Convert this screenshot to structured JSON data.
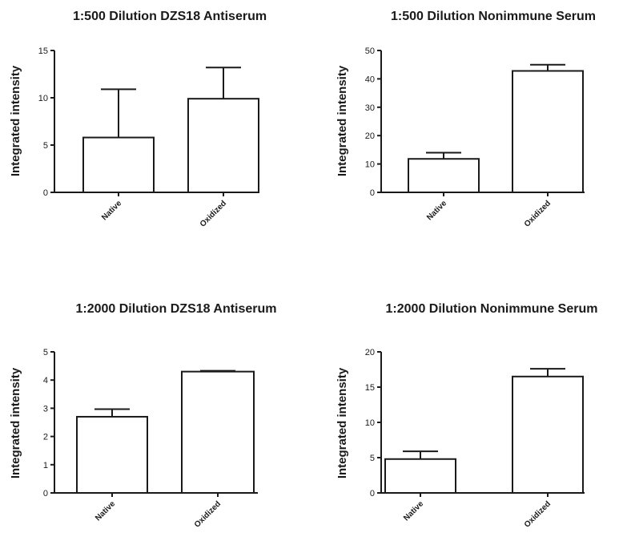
{
  "colors": {
    "bar_fill": "#ffffff",
    "stroke": "#1a1a1a"
  },
  "chart_data": [
    {
      "type": "bar",
      "title": "1:500 Dilution DZS18 Antiserum",
      "ylabel": "Integrated intensity",
      "xlabel": "",
      "categories": [
        "Native",
        "Oxidized"
      ],
      "values": [
        5.8,
        9.9
      ],
      "errors_upper": [
        10.9,
        13.2
      ],
      "ylim": [
        0,
        15
      ],
      "yticks": [
        0,
        5,
        10,
        15
      ]
    },
    {
      "type": "bar",
      "title": "1:500 Dilution Nonimmune Serum",
      "ylabel": "Integrated intensity",
      "xlabel": "",
      "categories": [
        "Native",
        "Oxidized"
      ],
      "values": [
        11.8,
        42.8
      ],
      "errors_upper": [
        14.0,
        45.0
      ],
      "ylim": [
        0,
        50
      ],
      "yticks": [
        0,
        10,
        20,
        30,
        40,
        50
      ]
    },
    {
      "type": "bar",
      "title": "1:2000 Dilution DZS18 Antiserum",
      "ylabel": "Integrated intensity",
      "xlabel": "",
      "categories": [
        "Native",
        "Oxidized"
      ],
      "values": [
        2.7,
        4.3
      ],
      "errors_upper": [
        2.97,
        4.33
      ],
      "ylim": [
        0,
        5
      ],
      "yticks": [
        0,
        1,
        2,
        3,
        4,
        5
      ]
    },
    {
      "type": "bar",
      "title": "1:2000 Dilution Nonimmune Serum",
      "ylabel": "Integrated intensity",
      "xlabel": "",
      "categories": [
        "Native",
        "Oxidized"
      ],
      "values": [
        4.8,
        16.5
      ],
      "errors_upper": [
        5.9,
        17.6
      ],
      "ylim": [
        0,
        20
      ],
      "yticks": [
        0,
        5,
        10,
        15,
        20
      ]
    }
  ]
}
